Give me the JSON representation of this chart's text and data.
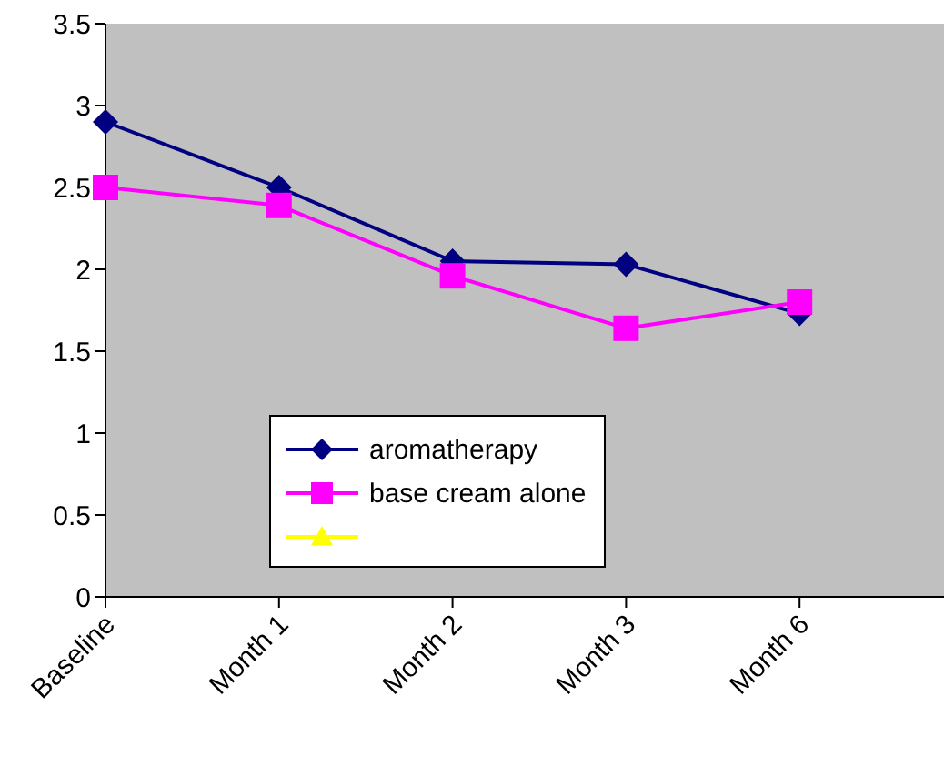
{
  "chart_data": {
    "type": "line",
    "categories": [
      "Baseline",
      "Month 1",
      "Month 2",
      "Month 3",
      "Month 6",
      null
    ],
    "series": [
      {
        "name": "aromatherapy",
        "color": "#000080",
        "marker": "diamond",
        "values": [
          2.9,
          2.5,
          2.05,
          2.03,
          1.73,
          null
        ]
      },
      {
        "name": "base cream alone",
        "color": "#ff00ff",
        "marker": "square",
        "values": [
          2.5,
          2.39,
          1.96,
          1.64,
          1.8,
          null
        ]
      },
      {
        "color": "#ffff00",
        "marker": "triangle",
        "values": [
          null,
          null,
          null,
          null,
          null,
          null
        ]
      }
    ],
    "ylim": [
      0,
      3.5
    ],
    "yticks": [
      0,
      0.5,
      1,
      1.5,
      2,
      2.5,
      3,
      3.5
    ],
    "legend": "bottom left"
  }
}
